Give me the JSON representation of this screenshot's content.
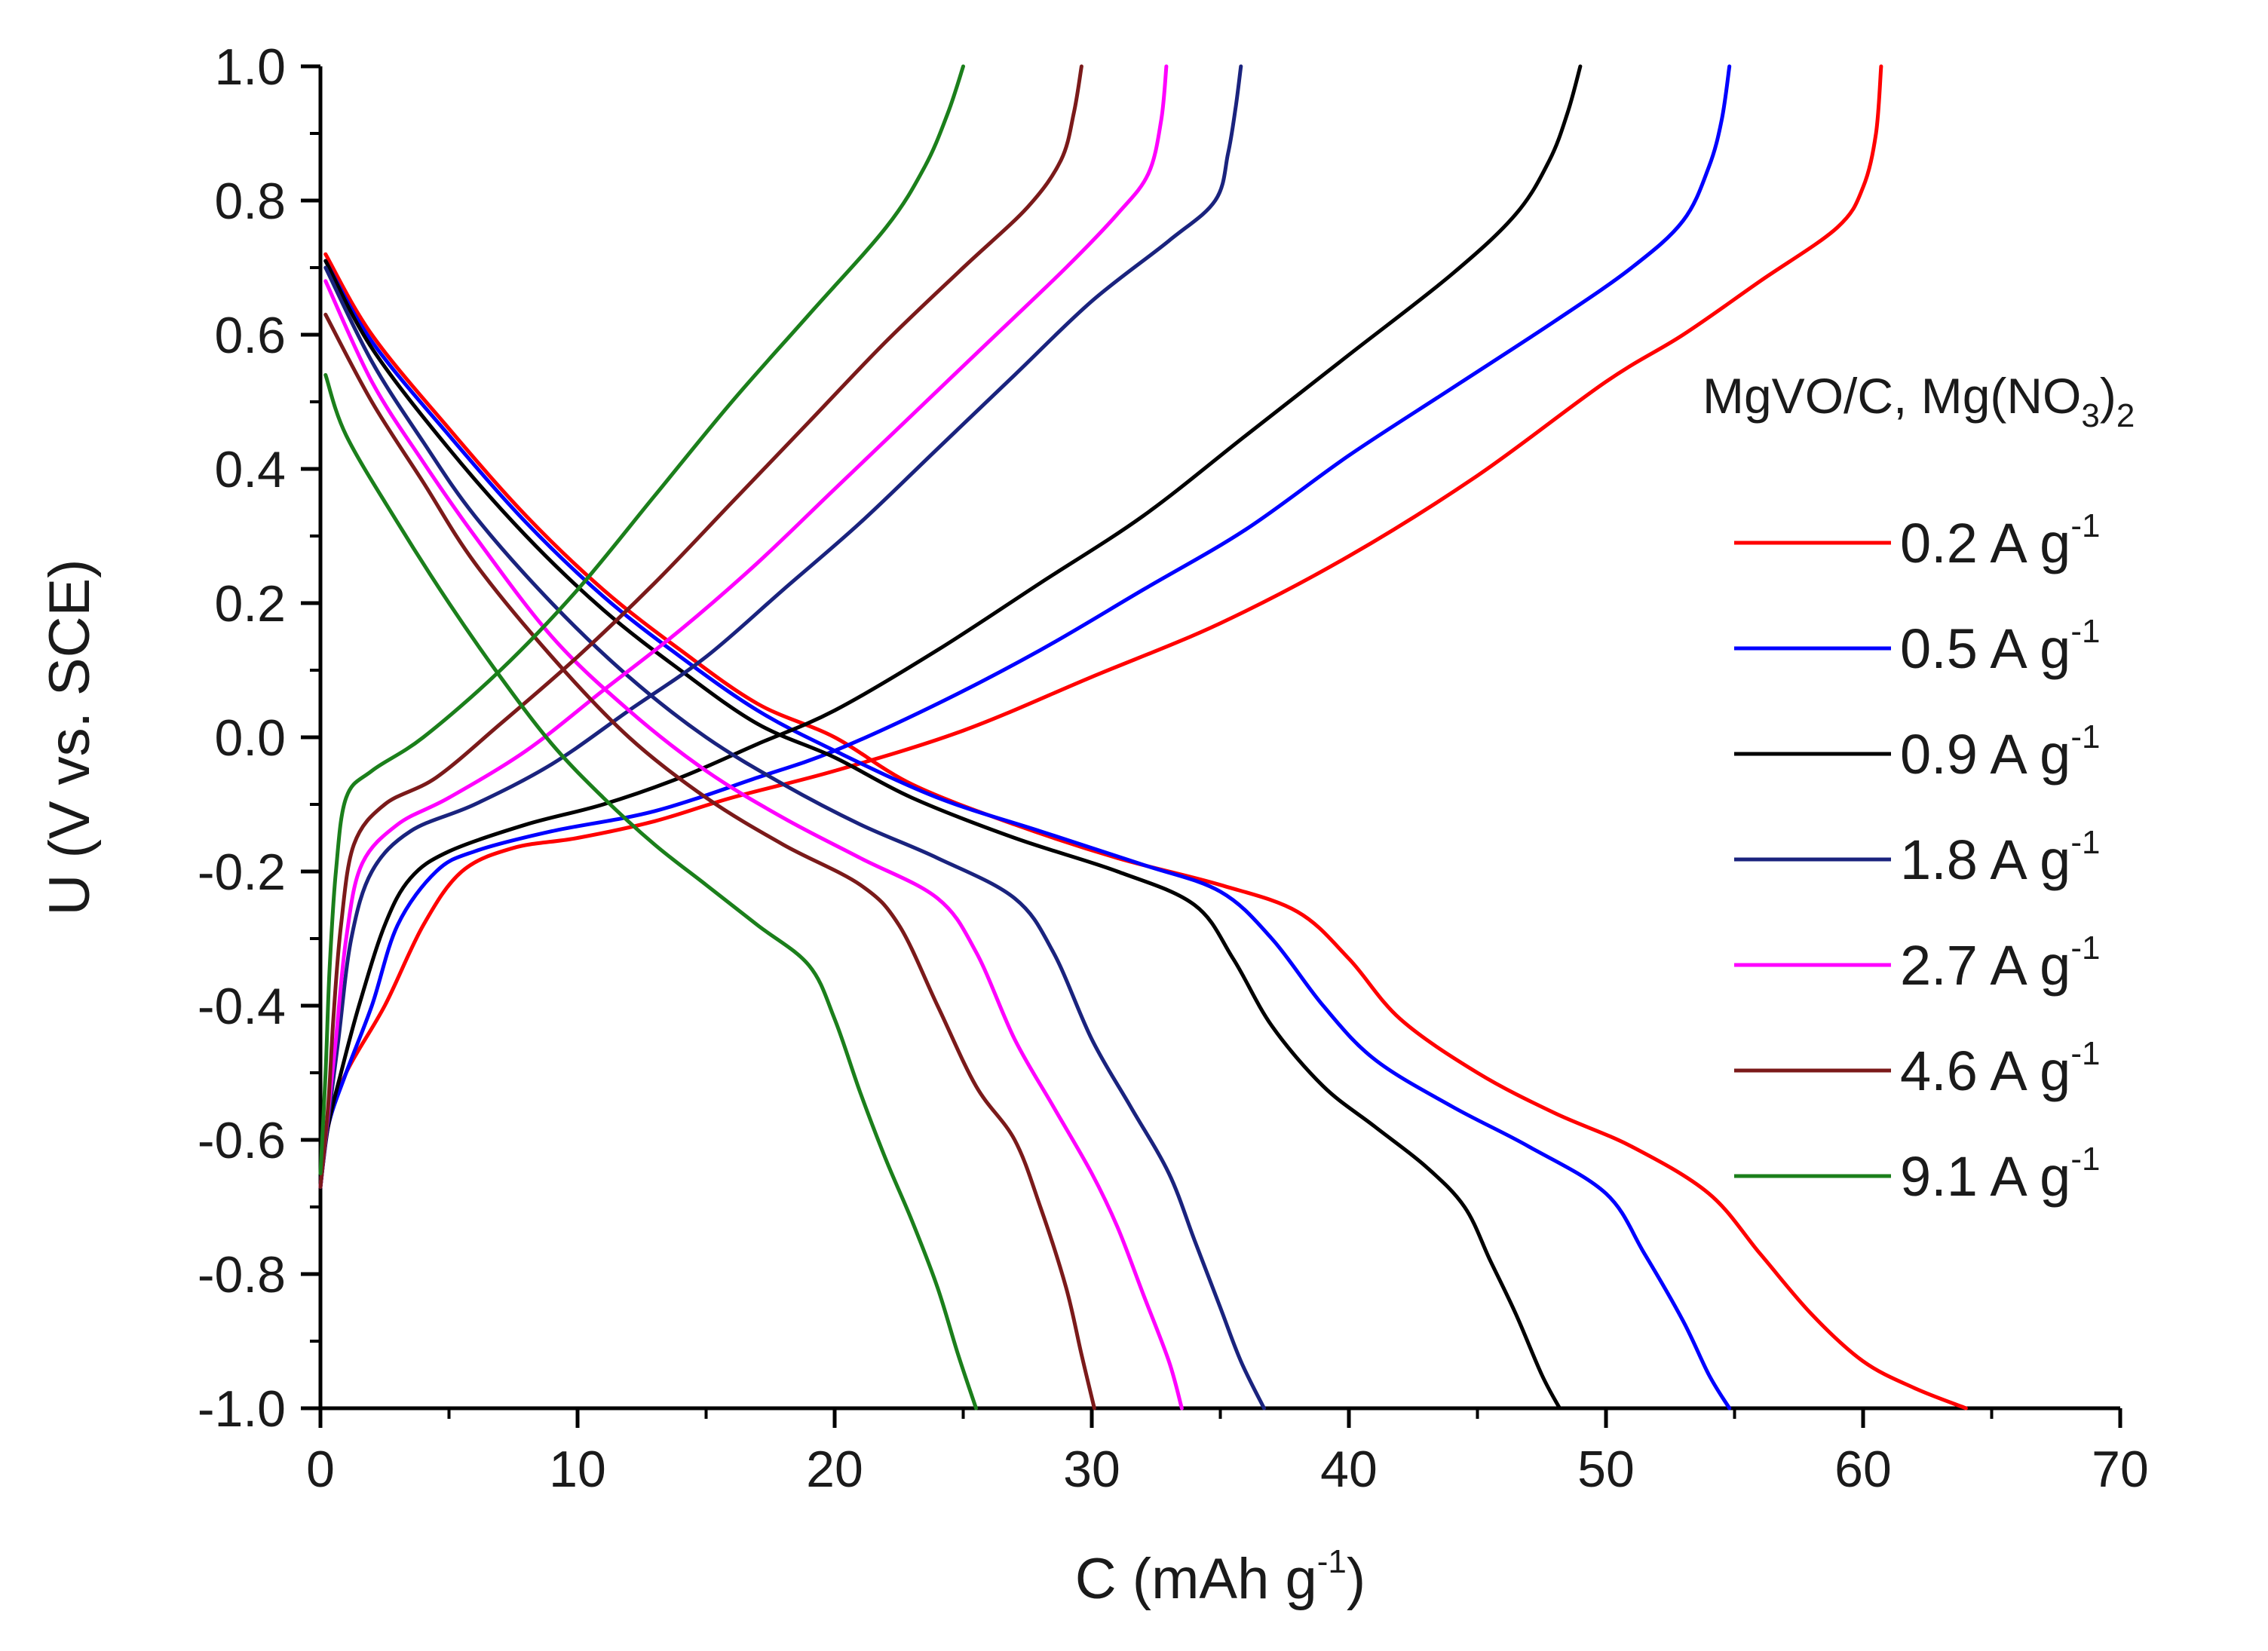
{
  "chart_data": {
    "type": "line",
    "title": "",
    "xlabel": "C (mAh g",
    "xlabel_sup": "-1",
    "xlabel_end": ")",
    "ylabel": "U (V vs. SCE)",
    "xlim": [
      0,
      70
    ],
    "ylim": [
      -1.0,
      1.0
    ],
    "x_ticks": [
      0,
      10,
      20,
      30,
      40,
      50,
      60,
      70
    ],
    "x_tick_labels": [
      "0",
      "10",
      "20",
      "30",
      "40",
      "50",
      "60",
      "70"
    ],
    "y_ticks": [
      -1.0,
      -0.8,
      -0.6,
      -0.4,
      -0.2,
      0.0,
      0.2,
      0.4,
      0.6,
      0.8,
      1.0
    ],
    "y_tick_labels": [
      "-1.0",
      "-0.8",
      "-0.6",
      "-0.4",
      "-0.2",
      "0.0",
      "0.2",
      "0.4",
      "0.6",
      "0.8",
      "1.0"
    ],
    "grid": false,
    "legend_position": "right",
    "legend_title": "MgVO/C, Mg(NO",
    "legend_title_sub": "3",
    "legend_title_end": ")",
    "legend_title_sub2": "2",
    "legend_unit": "A g",
    "legend_unit_sup": "-1",
    "series": [
      {
        "name": "0.2",
        "color": "#ff0000",
        "charge": [
          [
            0,
            -0.67
          ],
          [
            0.3,
            -0.58
          ],
          [
            1.0,
            -0.5
          ],
          [
            2.5,
            -0.4
          ],
          [
            4.0,
            -0.28
          ],
          [
            5.5,
            -0.2
          ],
          [
            7.5,
            -0.165
          ],
          [
            10,
            -0.15
          ],
          [
            13,
            -0.125
          ],
          [
            16,
            -0.09
          ],
          [
            20,
            -0.05
          ],
          [
            25,
            0.01
          ],
          [
            30,
            0.09
          ],
          [
            35,
            0.17
          ],
          [
            40,
            0.27
          ],
          [
            45,
            0.39
          ],
          [
            50,
            0.53
          ],
          [
            53,
            0.6
          ],
          [
            56,
            0.68
          ],
          [
            59,
            0.76
          ],
          [
            60,
            0.82
          ],
          [
            60.5,
            0.9
          ],
          [
            60.7,
            1.0
          ]
        ],
        "discharge": [
          [
            0.2,
            0.72
          ],
          [
            2,
            0.6
          ],
          [
            5,
            0.46
          ],
          [
            8,
            0.33
          ],
          [
            11,
            0.22
          ],
          [
            14,
            0.13
          ],
          [
            17,
            0.05
          ],
          [
            20,
            0.0
          ],
          [
            23,
            -0.07
          ],
          [
            27,
            -0.13
          ],
          [
            31,
            -0.18
          ],
          [
            35,
            -0.22
          ],
          [
            38,
            -0.26
          ],
          [
            40,
            -0.33
          ],
          [
            42,
            -0.42
          ],
          [
            45,
            -0.5
          ],
          [
            48,
            -0.56
          ],
          [
            51,
            -0.61
          ],
          [
            54,
            -0.68
          ],
          [
            56,
            -0.77
          ],
          [
            58,
            -0.86
          ],
          [
            60,
            -0.93
          ],
          [
            62,
            -0.97
          ],
          [
            64,
            -1.0
          ]
        ]
      },
      {
        "name": "0.5",
        "color": "#0000ff",
        "charge": [
          [
            0,
            -0.67
          ],
          [
            0.3,
            -0.58
          ],
          [
            1.0,
            -0.5
          ],
          [
            2,
            -0.4
          ],
          [
            3,
            -0.28
          ],
          [
            4.5,
            -0.2
          ],
          [
            6,
            -0.17
          ],
          [
            9,
            -0.14
          ],
          [
            13,
            -0.11
          ],
          [
            17,
            -0.06
          ],
          [
            20,
            -0.02
          ],
          [
            24,
            0.05
          ],
          [
            28,
            0.13
          ],
          [
            32,
            0.22
          ],
          [
            36,
            0.31
          ],
          [
            40,
            0.42
          ],
          [
            44,
            0.52
          ],
          [
            48,
            0.62
          ],
          [
            51,
            0.7
          ],
          [
            53,
            0.77
          ],
          [
            54,
            0.85
          ],
          [
            54.5,
            0.92
          ],
          [
            54.8,
            1.0
          ]
        ],
        "discharge": [
          [
            0.2,
            0.71
          ],
          [
            2,
            0.59
          ],
          [
            5,
            0.45
          ],
          [
            8,
            0.32
          ],
          [
            11,
            0.21
          ],
          [
            14,
            0.12
          ],
          [
            17,
            0.04
          ],
          [
            20,
            -0.02
          ],
          [
            24,
            -0.09
          ],
          [
            28,
            -0.14
          ],
          [
            32,
            -0.19
          ],
          [
            35,
            -0.23
          ],
          [
            37,
            -0.3
          ],
          [
            39,
            -0.4
          ],
          [
            41,
            -0.48
          ],
          [
            44,
            -0.55
          ],
          [
            47,
            -0.61
          ],
          [
            50,
            -0.68
          ],
          [
            51.5,
            -0.77
          ],
          [
            53,
            -0.87
          ],
          [
            54,
            -0.95
          ],
          [
            54.8,
            -1.0
          ]
        ]
      },
      {
        "name": "0.9",
        "color": "#000000",
        "charge": [
          [
            0,
            -0.67
          ],
          [
            0.3,
            -0.58
          ],
          [
            0.8,
            -0.5
          ],
          [
            1.5,
            -0.4
          ],
          [
            2.5,
            -0.28
          ],
          [
            3.5,
            -0.21
          ],
          [
            5,
            -0.17
          ],
          [
            8,
            -0.13
          ],
          [
            11,
            -0.1
          ],
          [
            14,
            -0.06
          ],
          [
            17,
            -0.01
          ],
          [
            20,
            0.04
          ],
          [
            24,
            0.13
          ],
          [
            28,
            0.23
          ],
          [
            32,
            0.33
          ],
          [
            36,
            0.45
          ],
          [
            40,
            0.57
          ],
          [
            44,
            0.69
          ],
          [
            46.5,
            0.78
          ],
          [
            47.8,
            0.86
          ],
          [
            48.5,
            0.93
          ],
          [
            49,
            1.0
          ]
        ],
        "discharge": [
          [
            0.2,
            0.71
          ],
          [
            2,
            0.58
          ],
          [
            5,
            0.43
          ],
          [
            8,
            0.3
          ],
          [
            11,
            0.19
          ],
          [
            14,
            0.1
          ],
          [
            17,
            0.02
          ],
          [
            20,
            -0.03
          ],
          [
            23,
            -0.09
          ],
          [
            27,
            -0.15
          ],
          [
            31,
            -0.2
          ],
          [
            34,
            -0.25
          ],
          [
            35.5,
            -0.33
          ],
          [
            37,
            -0.43
          ],
          [
            39,
            -0.52
          ],
          [
            41,
            -0.58
          ],
          [
            43,
            -0.64
          ],
          [
            44.5,
            -0.7
          ],
          [
            45.5,
            -0.78
          ],
          [
            46.5,
            -0.86
          ],
          [
            47.5,
            -0.95
          ],
          [
            48.2,
            -1.0
          ]
        ]
      },
      {
        "name": "1.8",
        "color": "#1a237e",
        "charge": [
          [
            0,
            -0.67
          ],
          [
            0.3,
            -0.57
          ],
          [
            0.7,
            -0.45
          ],
          [
            1.2,
            -0.3
          ],
          [
            2,
            -0.2
          ],
          [
            3.5,
            -0.14
          ],
          [
            6,
            -0.1
          ],
          [
            9,
            -0.04
          ],
          [
            12,
            0.04
          ],
          [
            15,
            0.12
          ],
          [
            18,
            0.22
          ],
          [
            21,
            0.32
          ],
          [
            24,
            0.43
          ],
          [
            27,
            0.54
          ],
          [
            30,
            0.65
          ],
          [
            33,
            0.74
          ],
          [
            34.8,
            0.8
          ],
          [
            35.3,
            0.87
          ],
          [
            35.6,
            0.94
          ],
          [
            35.8,
            1.0
          ]
        ],
        "discharge": [
          [
            0.2,
            0.7
          ],
          [
            2,
            0.56
          ],
          [
            4,
            0.44
          ],
          [
            6,
            0.33
          ],
          [
            9,
            0.2
          ],
          [
            12,
            0.09
          ],
          [
            15,
            0.0
          ],
          [
            18,
            -0.07
          ],
          [
            21,
            -0.13
          ],
          [
            24,
            -0.18
          ],
          [
            27,
            -0.24
          ],
          [
            28.5,
            -0.32
          ],
          [
            30,
            -0.45
          ],
          [
            31.5,
            -0.55
          ],
          [
            33,
            -0.65
          ],
          [
            34,
            -0.75
          ],
          [
            35,
            -0.85
          ],
          [
            35.8,
            -0.93
          ],
          [
            36.7,
            -1.0
          ]
        ]
      },
      {
        "name": "2.7",
        "color": "#ff00ff",
        "charge": [
          [
            0,
            -0.67
          ],
          [
            0.3,
            -0.56
          ],
          [
            0.6,
            -0.45
          ],
          [
            1,
            -0.3
          ],
          [
            1.6,
            -0.19
          ],
          [
            3,
            -0.13
          ],
          [
            5,
            -0.09
          ],
          [
            8,
            -0.02
          ],
          [
            11,
            0.07
          ],
          [
            14,
            0.16
          ],
          [
            17,
            0.26
          ],
          [
            20,
            0.37
          ],
          [
            23,
            0.48
          ],
          [
            26,
            0.59
          ],
          [
            29,
            0.7
          ],
          [
            31,
            0.78
          ],
          [
            32.2,
            0.84
          ],
          [
            32.7,
            0.92
          ],
          [
            32.9,
            1.0
          ]
        ],
        "discharge": [
          [
            0.2,
            0.68
          ],
          [
            2,
            0.53
          ],
          [
            4,
            0.41
          ],
          [
            6,
            0.3
          ],
          [
            9,
            0.15
          ],
          [
            12,
            0.04
          ],
          [
            15,
            -0.05
          ],
          [
            18,
            -0.12
          ],
          [
            21,
            -0.18
          ],
          [
            24,
            -0.24
          ],
          [
            25.5,
            -0.32
          ],
          [
            27,
            -0.45
          ],
          [
            28.5,
            -0.55
          ],
          [
            30,
            -0.65
          ],
          [
            31,
            -0.73
          ],
          [
            32,
            -0.83
          ],
          [
            33,
            -0.93
          ],
          [
            33.5,
            -1.0
          ]
        ]
      },
      {
        "name": "4.6",
        "color": "#7b1a1a",
        "charge": [
          [
            0,
            -0.67
          ],
          [
            0.3,
            -0.55
          ],
          [
            0.5,
            -0.42
          ],
          [
            0.8,
            -0.28
          ],
          [
            1.3,
            -0.16
          ],
          [
            2.5,
            -0.1
          ],
          [
            4.5,
            -0.06
          ],
          [
            7,
            0.02
          ],
          [
            10,
            0.12
          ],
          [
            13,
            0.23
          ],
          [
            16,
            0.35
          ],
          [
            19,
            0.47
          ],
          [
            22,
            0.59
          ],
          [
            25,
            0.7
          ],
          [
            27.5,
            0.79
          ],
          [
            28.8,
            0.86
          ],
          [
            29.3,
            0.93
          ],
          [
            29.6,
            1.0
          ]
        ],
        "discharge": [
          [
            0.2,
            0.63
          ],
          [
            2,
            0.5
          ],
          [
            4,
            0.38
          ],
          [
            6,
            0.26
          ],
          [
            9,
            0.12
          ],
          [
            12,
            0.0
          ],
          [
            15,
            -0.09
          ],
          [
            18,
            -0.16
          ],
          [
            21,
            -0.22
          ],
          [
            22.5,
            -0.28
          ],
          [
            24,
            -0.4
          ],
          [
            25.5,
            -0.52
          ],
          [
            27,
            -0.6
          ],
          [
            28,
            -0.7
          ],
          [
            29,
            -0.82
          ],
          [
            29.6,
            -0.92
          ],
          [
            30.1,
            -1.0
          ]
        ]
      },
      {
        "name": "9.1",
        "color": "#1b7f1b",
        "charge": [
          [
            0,
            -0.65
          ],
          [
            0.2,
            -0.5
          ],
          [
            0.35,
            -0.35
          ],
          [
            0.6,
            -0.2
          ],
          [
            1.0,
            -0.09
          ],
          [
            2,
            -0.05
          ],
          [
            4,
            0.0
          ],
          [
            7,
            0.1
          ],
          [
            10,
            0.22
          ],
          [
            13,
            0.36
          ],
          [
            16,
            0.5
          ],
          [
            19,
            0.63
          ],
          [
            22,
            0.76
          ],
          [
            23.5,
            0.85
          ],
          [
            24.4,
            0.93
          ],
          [
            25,
            1.0
          ]
        ],
        "discharge": [
          [
            0.2,
            0.54
          ],
          [
            1,
            0.45
          ],
          [
            3,
            0.32
          ],
          [
            5,
            0.2
          ],
          [
            7,
            0.09
          ],
          [
            9,
            -0.01
          ],
          [
            11,
            -0.09
          ],
          [
            13,
            -0.16
          ],
          [
            15,
            -0.22
          ],
          [
            17,
            -0.28
          ],
          [
            19,
            -0.34
          ],
          [
            20,
            -0.42
          ],
          [
            21,
            -0.53
          ],
          [
            22,
            -0.63
          ],
          [
            23,
            -0.72
          ],
          [
            24,
            -0.82
          ],
          [
            24.8,
            -0.92
          ],
          [
            25.5,
            -1.0
          ]
        ]
      }
    ]
  }
}
